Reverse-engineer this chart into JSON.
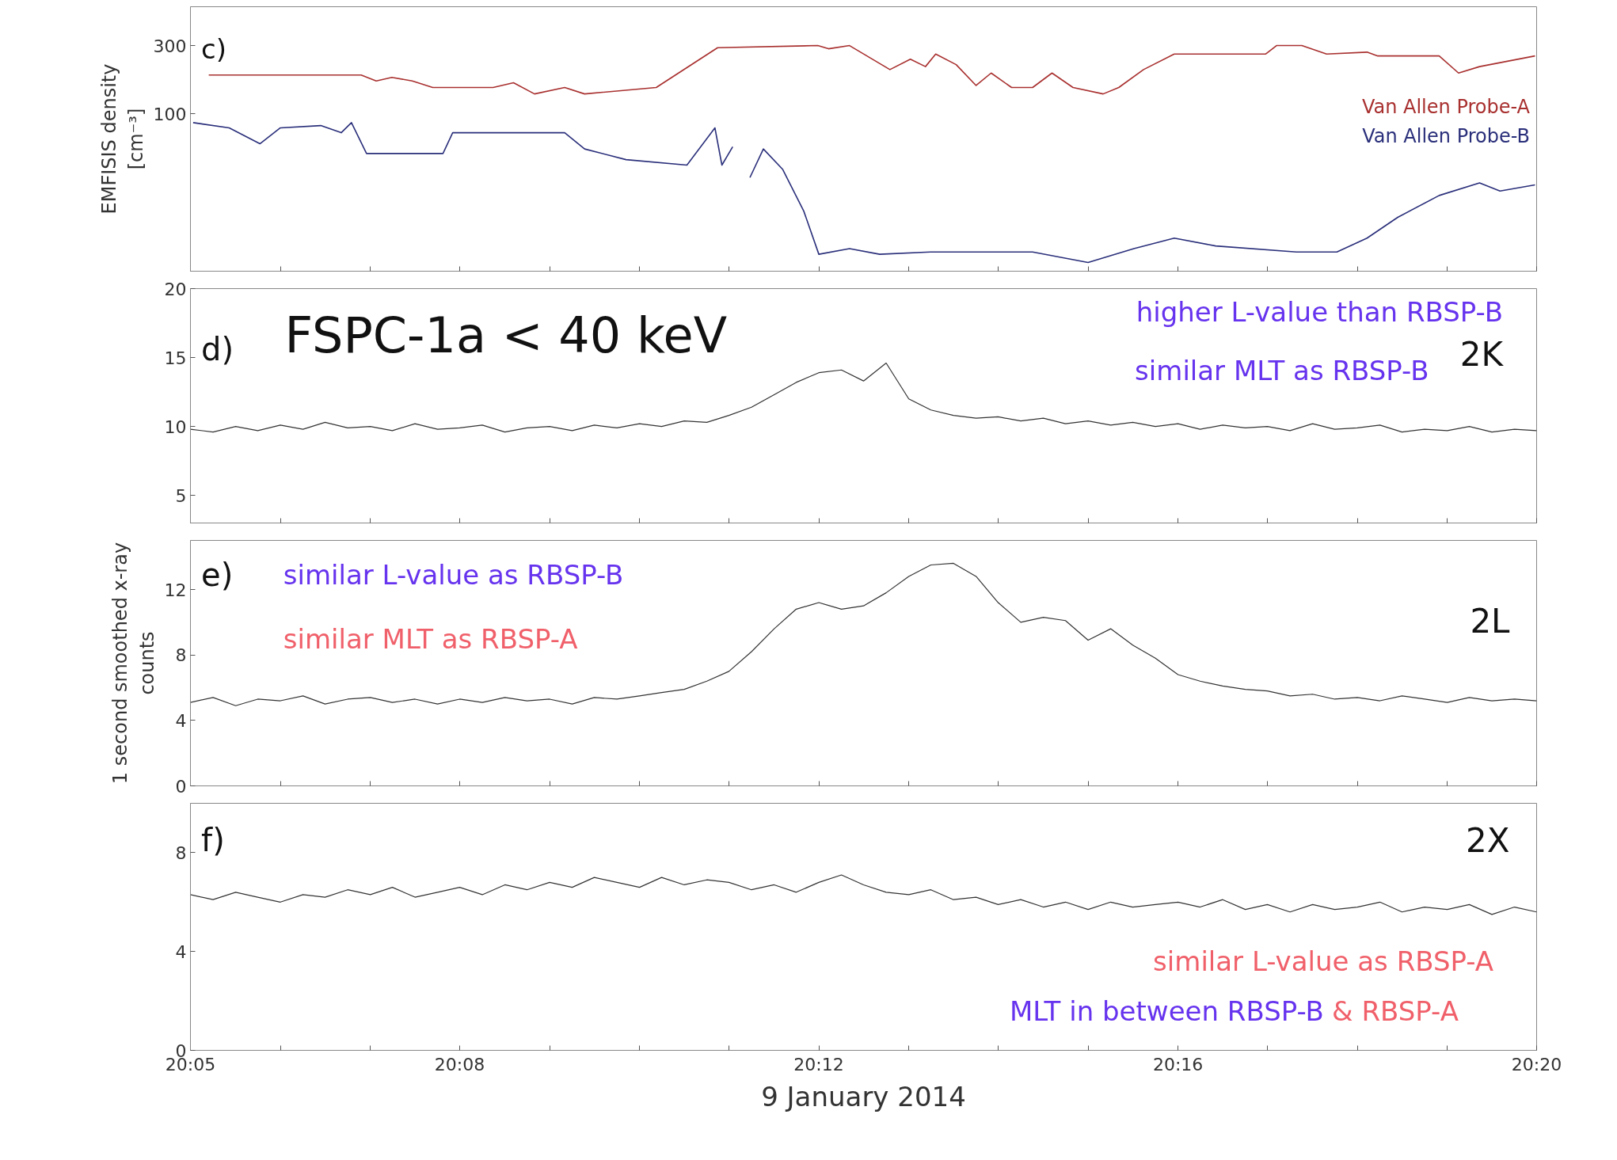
{
  "chart_data": [
    {
      "type": "line",
      "ylabel": "EMFISIS density\n[cm⁻³]",
      "log": true,
      "xlim": [
        20.0833,
        20.3333
      ],
      "ylim": [
        8,
        560
      ],
      "yticks": [
        100,
        300
      ],
      "tick_labels": "y",
      "legend": "right",
      "annotations": [
        "c)"
      ],
      "xticks": [
        {
          "value": 20.0833,
          "label": null
        },
        {
          "value": 20.1,
          "label": null
        },
        {
          "value": 20.1167,
          "label": null
        },
        {
          "value": 20.1333,
          "label": null
        },
        {
          "value": 20.15,
          "label": null
        },
        {
          "value": 20.1667,
          "label": null
        },
        {
          "value": 20.1833,
          "label": null
        },
        {
          "value": 20.2,
          "label": null
        },
        {
          "value": 20.2167,
          "label": null
        },
        {
          "value": 20.2333,
          "label": null
        },
        {
          "value": 20.25,
          "label": null
        },
        {
          "value": 20.2667,
          "label": null
        },
        {
          "value": 20.2833,
          "label": null
        },
        {
          "value": 20.3,
          "label": null
        },
        {
          "value": 20.3167,
          "label": null
        },
        {
          "value": 20.3333,
          "label": null
        }
      ],
      "series": [
        {
          "name": "Van Allen Probe-A",
          "color": "#a8302f",
          "x": [
            20.0867,
            20.115,
            20.1178,
            20.1207,
            20.1245,
            20.1283,
            20.1395,
            20.1433,
            20.1472,
            20.1528,
            20.1565,
            20.1698,
            20.1812,
            20.1998,
            20.2018,
            20.2057,
            20.2132,
            20.217,
            20.2198,
            20.2217,
            20.2255,
            20.2292,
            20.232,
            20.2358,
            20.2397,
            20.2433,
            20.2472,
            20.2528,
            20.2557,
            20.2603,
            20.266,
            20.283,
            20.285,
            20.2897,
            20.2943,
            20.3018,
            20.3038,
            20.3152,
            20.3188,
            20.3227,
            20.333
          ],
          "values": [
            187,
            187,
            170,
            180,
            170,
            153,
            153,
            165,
            138,
            153,
            138,
            153,
            290,
            300,
            285,
            300,
            204,
            241,
            214,
            262,
            221,
            158,
            193,
            153,
            153,
            193,
            153,
            138,
            153,
            204,
            262,
            262,
            300,
            300,
            262,
            270,
            254,
            254,
            193,
            214,
            254
          ]
        },
        {
          "name": "Van Allen Probe-B",
          "color": "#2a2f7a",
          "x": [
            20.0838,
            20.0905,
            20.0962,
            20.1,
            20.1075,
            20.1113,
            20.1132,
            20.116,
            20.1302,
            20.132,
            20.1528,
            20.1565,
            20.1642,
            20.1755,
            20.1807,
            20.182,
            20.184,
            20.1856,
            20.1872,
            20.1897,
            20.1933,
            20.1972,
            20.2,
            20.2057,
            20.2113,
            20.2207,
            20.2397,
            20.25,
            20.2585,
            20.266,
            20.2737,
            20.2887,
            20.2962,
            20.3018,
            20.3075,
            20.3152,
            20.3227,
            20.3265,
            20.333
          ],
          "values": [
            87,
            80,
            62,
            80,
            83,
            74,
            87,
            53,
            53,
            74,
            74,
            57,
            48,
            44,
            80,
            44,
            59,
            null,
            36,
            57,
            41,
            21,
            10.5,
            11.5,
            10.5,
            10.9,
            10.9,
            9.2,
            11.5,
            13.6,
            12,
            10.9,
            10.9,
            13.6,
            19,
            27,
            33,
            29,
            32
          ]
        }
      ]
    },
    {
      "type": "line",
      "xlim": [
        20.0833,
        20.3333
      ],
      "ylim": [
        3,
        20
      ],
      "yticks": [
        5,
        10,
        15,
        20
      ],
      "tick_labels": "y",
      "annotations": [
        "d)",
        "FSPC-1a < 40 keV",
        "higher L-value than RBSP-B",
        "similar MLT as RBSP-B",
        "2K"
      ],
      "xticks": [
        {
          "value": 20.0833,
          "label": null
        },
        {
          "value": 20.1,
          "label": null
        },
        {
          "value": 20.1167,
          "label": null
        },
        {
          "value": 20.1333,
          "label": null
        },
        {
          "value": 20.15,
          "label": null
        },
        {
          "value": 20.1667,
          "label": null
        },
        {
          "value": 20.1833,
          "label": null
        },
        {
          "value": 20.2,
          "label": null
        },
        {
          "value": 20.2167,
          "label": null
        },
        {
          "value": 20.2333,
          "label": null
        },
        {
          "value": 20.25,
          "label": null
        },
        {
          "value": 20.2667,
          "label": null
        },
        {
          "value": 20.2833,
          "label": null
        },
        {
          "value": 20.3,
          "label": null
        },
        {
          "value": 20.3167,
          "label": null
        },
        {
          "value": 20.3333,
          "label": null
        }
      ],
      "x": [
        20.0833,
        20.0875,
        20.0917,
        20.0958,
        20.1,
        20.1042,
        20.1083,
        20.1125,
        20.1167,
        20.1208,
        20.125,
        20.1292,
        20.1333,
        20.1375,
        20.1417,
        20.1458,
        20.15,
        20.1542,
        20.1583,
        20.1625,
        20.1667,
        20.1708,
        20.175,
        20.1792,
        20.1833,
        20.1875,
        20.1917,
        20.1958,
        20.2,
        20.2042,
        20.2083,
        20.2125,
        20.2167,
        20.2208,
        20.225,
        20.2292,
        20.2333,
        20.2375,
        20.2417,
        20.2458,
        20.25,
        20.2542,
        20.2583,
        20.2625,
        20.2667,
        20.2708,
        20.275,
        20.2792,
        20.2833,
        20.2875,
        20.2917,
        20.2958,
        20.3,
        20.3042,
        20.3083,
        20.3125,
        20.3167,
        20.3208,
        20.325,
        20.3292,
        20.3333
      ],
      "series": [
        {
          "color": "#333333",
          "values": [
            9.8,
            9.6,
            10.0,
            9.7,
            10.1,
            9.8,
            10.3,
            9.9,
            10.0,
            9.7,
            10.2,
            9.8,
            9.9,
            10.1,
            9.6,
            9.9,
            10.0,
            9.7,
            10.1,
            9.9,
            10.2,
            10.0,
            10.4,
            10.3,
            10.8,
            11.4,
            12.3,
            13.2,
            13.9,
            14.1,
            13.3,
            14.6,
            12.0,
            11.2,
            10.8,
            10.6,
            10.7,
            10.4,
            10.6,
            10.2,
            10.4,
            10.1,
            10.3,
            10.0,
            10.2,
            9.8,
            10.1,
            9.9,
            10.0,
            9.7,
            10.2,
            9.8,
            9.9,
            10.1,
            9.6,
            9.8,
            9.7,
            10.0,
            9.6,
            9.8,
            9.7
          ]
        }
      ]
    },
    {
      "type": "line",
      "xlim": [
        20.0833,
        20.3333
      ],
      "ylim": [
        0,
        15
      ],
      "yticks": [
        0,
        4,
        8,
        12
      ],
      "tick_labels": "y",
      "ylabel": "1 second smoothed x-ray\ncounts",
      "annotations": [
        "e)",
        "similar L-value as RBSP-B",
        "similar MLT as RBSP-A",
        "2L"
      ],
      "xticks": [
        {
          "value": 20.0833,
          "label": null
        },
        {
          "value": 20.1,
          "label": null
        },
        {
          "value": 20.1167,
          "label": null
        },
        {
          "value": 20.1333,
          "label": null
        },
        {
          "value": 20.15,
          "label": null
        },
        {
          "value": 20.1667,
          "label": null
        },
        {
          "value": 20.1833,
          "label": null
        },
        {
          "value": 20.2,
          "label": null
        },
        {
          "value": 20.2167,
          "label": null
        },
        {
          "value": 20.2333,
          "label": null
        },
        {
          "value": 20.25,
          "label": null
        },
        {
          "value": 20.2667,
          "label": null
        },
        {
          "value": 20.2833,
          "label": null
        },
        {
          "value": 20.3,
          "label": null
        },
        {
          "value": 20.3167,
          "label": null
        },
        {
          "value": 20.3333,
          "label": null
        }
      ],
      "x": [
        20.0833,
        20.0875,
        20.0917,
        20.0958,
        20.1,
        20.1042,
        20.1083,
        20.1125,
        20.1167,
        20.1208,
        20.125,
        20.1292,
        20.1333,
        20.1375,
        20.1417,
        20.1458,
        20.15,
        20.1542,
        20.1583,
        20.1625,
        20.1667,
        20.1708,
        20.175,
        20.1792,
        20.1833,
        20.1875,
        20.1917,
        20.1958,
        20.2,
        20.2042,
        20.2083,
        20.2125,
        20.2167,
        20.2208,
        20.225,
        20.2292,
        20.2333,
        20.2375,
        20.2417,
        20.2458,
        20.25,
        20.2542,
        20.2583,
        20.2625,
        20.2667,
        20.2708,
        20.275,
        20.2792,
        20.2833,
        20.2875,
        20.2917,
        20.2958,
        20.3,
        20.3042,
        20.3083,
        20.3125,
        20.3167,
        20.3208,
        20.325,
        20.3292,
        20.3333
      ],
      "series": [
        {
          "color": "#333333",
          "values": [
            5.1,
            5.4,
            4.9,
            5.3,
            5.2,
            5.5,
            5.0,
            5.3,
            5.4,
            5.1,
            5.3,
            5.0,
            5.3,
            5.1,
            5.4,
            5.2,
            5.3,
            5.0,
            5.4,
            5.3,
            5.5,
            5.7,
            5.9,
            6.4,
            7.0,
            8.2,
            9.6,
            10.8,
            11.2,
            10.8,
            11.0,
            11.8,
            12.8,
            13.5,
            13.6,
            12.8,
            11.2,
            10.0,
            10.3,
            10.1,
            8.9,
            9.6,
            8.6,
            7.8,
            6.8,
            6.4,
            6.1,
            5.9,
            5.8,
            5.5,
            5.6,
            5.3,
            5.4,
            5.2,
            5.5,
            5.3,
            5.1,
            5.4,
            5.2,
            5.3,
            5.2
          ]
        }
      ]
    },
    {
      "type": "line",
      "xlim": [
        20.0833,
        20.3333
      ],
      "ylim": [
        0,
        10
      ],
      "yticks": [
        0,
        4,
        8
      ],
      "xlabel": "9 January 2014",
      "annotations": [
        "f)",
        "2X",
        "similar L-value as RBSP-A",
        "MLT in between RBSP-B",
        "& RBSP-A"
      ],
      "xticks": [
        {
          "value": 20.0833,
          "label": "20:05"
        },
        {
          "value": 20.1,
          "label": null
        },
        {
          "value": 20.1167,
          "label": null
        },
        {
          "value": 20.1333,
          "label": "20:08"
        },
        {
          "value": 20.15,
          "label": null
        },
        {
          "value": 20.1667,
          "label": null
        },
        {
          "value": 20.1833,
          "label": null
        },
        {
          "value": 20.2,
          "label": "20:12"
        },
        {
          "value": 20.2167,
          "label": null
        },
        {
          "value": 20.2333,
          "label": null
        },
        {
          "value": 20.25,
          "label": null
        },
        {
          "value": 20.2667,
          "label": "20:16"
        },
        {
          "value": 20.2833,
          "label": null
        },
        {
          "value": 20.3,
          "label": null
        },
        {
          "value": 20.3167,
          "label": null
        },
        {
          "value": 20.3333,
          "label": "20:20"
        }
      ],
      "x": [
        20.0833,
        20.0875,
        20.0917,
        20.0958,
        20.1,
        20.1042,
        20.1083,
        20.1125,
        20.1167,
        20.1208,
        20.125,
        20.1292,
        20.1333,
        20.1375,
        20.1417,
        20.1458,
        20.15,
        20.1542,
        20.1583,
        20.1625,
        20.1667,
        20.1708,
        20.175,
        20.1792,
        20.1833,
        20.1875,
        20.1917,
        20.1958,
        20.2,
        20.2042,
        20.2083,
        20.2125,
        20.2167,
        20.2208,
        20.225,
        20.2292,
        20.2333,
        20.2375,
        20.2417,
        20.2458,
        20.25,
        20.2542,
        20.2583,
        20.2625,
        20.2667,
        20.2708,
        20.275,
        20.2792,
        20.2833,
        20.2875,
        20.2917,
        20.2958,
        20.3,
        20.3042,
        20.3083,
        20.3125,
        20.3167,
        20.3208,
        20.325,
        20.3292,
        20.3333
      ],
      "series": [
        {
          "color": "#333333",
          "values": [
            6.3,
            6.1,
            6.4,
            6.2,
            6.0,
            6.3,
            6.2,
            6.5,
            6.3,
            6.6,
            6.2,
            6.4,
            6.6,
            6.3,
            6.7,
            6.5,
            6.8,
            6.6,
            7.0,
            6.8,
            6.6,
            7.0,
            6.7,
            6.9,
            6.8,
            6.5,
            6.7,
            6.4,
            6.8,
            7.1,
            6.7,
            6.4,
            6.3,
            6.5,
            6.1,
            6.2,
            5.9,
            6.1,
            5.8,
            6.0,
            5.7,
            6.0,
            5.8,
            5.9,
            6.0,
            5.8,
            6.1,
            5.7,
            5.9,
            5.6,
            5.9,
            5.7,
            5.8,
            6.0,
            5.6,
            5.8,
            5.7,
            5.9,
            5.5,
            5.8,
            5.6
          ]
        }
      ]
    }
  ]
}
